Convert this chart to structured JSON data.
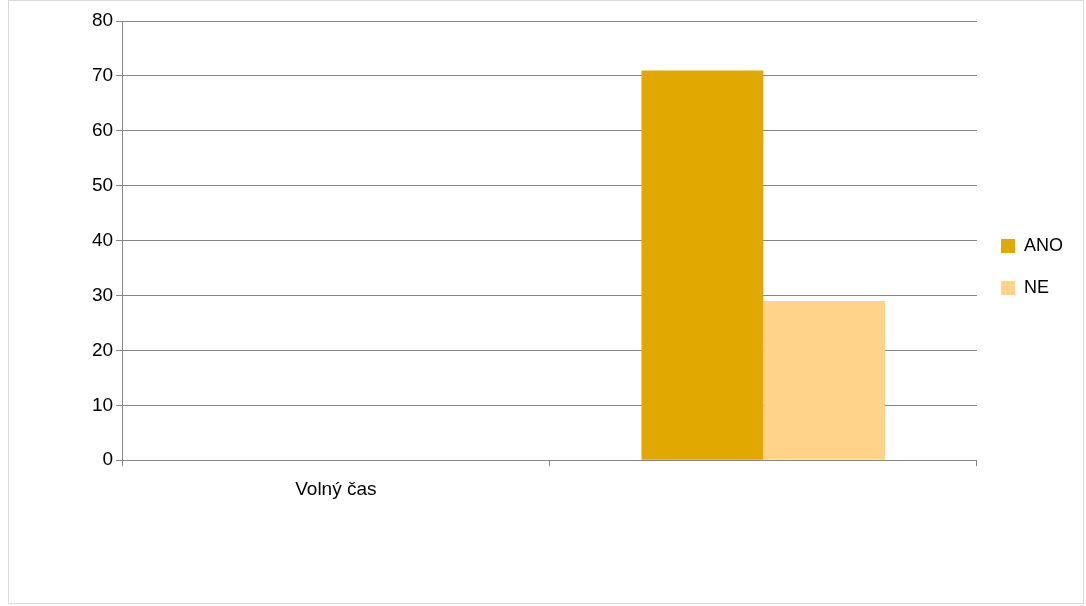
{
  "chart_data": {
    "type": "bar",
    "categories": [
      "Volný čas",
      null
    ],
    "series": [
      {
        "name": "ANO",
        "color": "#e0a800",
        "values": [
          null,
          71
        ]
      },
      {
        "name": "NE",
        "color": "#ffd389",
        "values": [
          null,
          29
        ]
      }
    ],
    "ylim": [
      0,
      80
    ],
    "yticks": [
      0,
      10,
      20,
      30,
      40,
      50,
      60,
      70,
      80
    ],
    "grid": "y",
    "legend": "right"
  }
}
